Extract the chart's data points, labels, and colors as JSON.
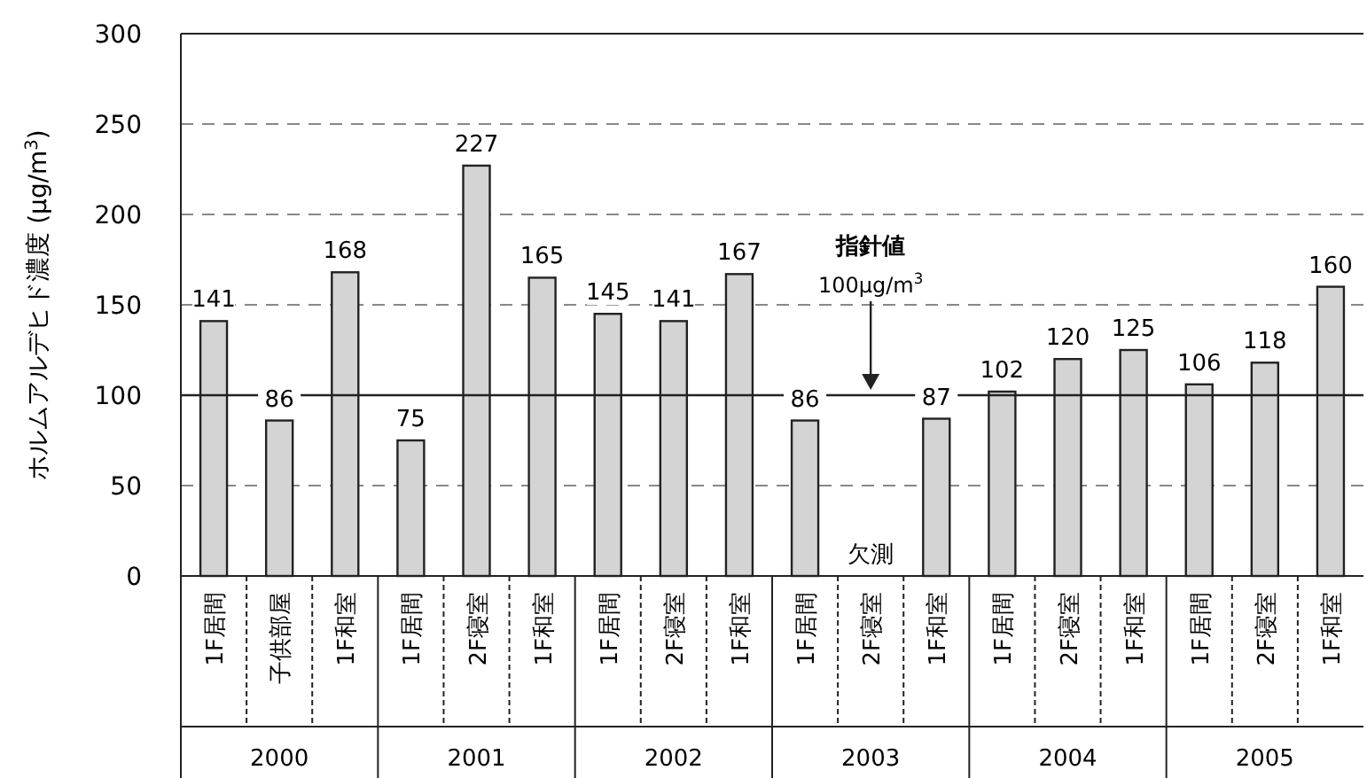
{
  "chart_data": {
    "type": "bar",
    "ylabel": "ホルムアルデヒド濃度 (μg/m$^{3}$)",
    "categories": [
      "1F居間",
      "子供部屋",
      "1F和室",
      "1F居間",
      "2F寝室",
      "1F和室",
      "1F居間",
      "2F寝室",
      "1F和室",
      "1F居間",
      "2F寝室",
      "1F和室",
      "1F居間",
      "2F寝室",
      "1F和室",
      "1F居間",
      "2F寝室",
      "1F和室"
    ],
    "values": [
      141,
      86,
      168,
      75,
      227,
      165,
      145,
      141,
      167,
      86,
      null,
      87,
      102,
      120,
      125,
      106,
      118,
      160
    ],
    "color": "#d4d4d4",
    "ylim": [
      0,
      300
    ],
    "yticks": [
      0,
      50,
      100,
      150,
      200,
      250,
      300
    ],
    "grid": "y",
    "data_labels": true,
    "ref_lines": [
      {
        "axis": "y",
        "value": 100,
        "label": "指針値 100μg/m$^{3}$"
      }
    ],
    "annotations": [
      "2000",
      "2001",
      "2002",
      "2003",
      "2004",
      "2005",
      "欠測"
    ]
  }
}
